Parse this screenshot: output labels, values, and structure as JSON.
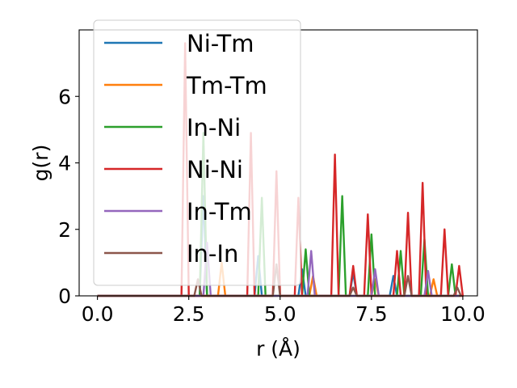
{
  "chart_data": {
    "type": "line",
    "title": "",
    "xlabel": "r (Å)",
    "ylabel": "g(r)",
    "xlim": [
      -0.5,
      10.4
    ],
    "ylim": [
      0,
      8.0
    ],
    "xticks": [
      0.0,
      2.5,
      5.0,
      7.5,
      10.0
    ],
    "xtick_labels": [
      "0.0",
      "2.5",
      "5.0",
      "7.5",
      "10.0"
    ],
    "yticks": [
      0,
      2,
      4,
      6
    ],
    "ytick_labels": [
      "0",
      "2",
      "4",
      "6"
    ],
    "grid": false,
    "legend_position": "upper-left",
    "x_range": [
      0.0,
      9.9
    ],
    "peak_half_width": 0.1,
    "series": [
      {
        "name": "Ni-Tm",
        "color": "#1f77b4",
        "peaks": [
          [
            2.9,
            3.0
          ],
          [
            4.4,
            1.2
          ],
          [
            5.6,
            0.8
          ],
          [
            7.0,
            0.7
          ],
          [
            8.1,
            0.6
          ]
        ]
      },
      {
        "name": "Tm-Tm",
        "color": "#ff7f0e",
        "peaks": [
          [
            3.4,
            1.0
          ],
          [
            5.9,
            0.6
          ],
          [
            7.6,
            0.5
          ],
          [
            9.2,
            0.5
          ]
        ]
      },
      {
        "name": "In-Ni",
        "color": "#2ca02c",
        "peaks": [
          [
            2.9,
            4.9
          ],
          [
            4.5,
            2.95
          ],
          [
            5.7,
            1.4
          ],
          [
            6.7,
            3.0
          ],
          [
            7.5,
            1.85
          ],
          [
            8.3,
            1.35
          ],
          [
            8.95,
            1.7
          ],
          [
            9.7,
            0.95
          ]
        ]
      },
      {
        "name": "Ni-Ni",
        "color": "#d62728",
        "peaks": [
          [
            2.4,
            7.6
          ],
          [
            4.2,
            4.9
          ],
          [
            4.9,
            3.75
          ],
          [
            5.5,
            2.95
          ],
          [
            6.5,
            4.25
          ],
          [
            7.0,
            0.9
          ],
          [
            7.4,
            2.45
          ],
          [
            8.2,
            1.35
          ],
          [
            8.5,
            2.5
          ],
          [
            8.9,
            3.4
          ],
          [
            9.5,
            2.0
          ],
          [
            9.9,
            0.9
          ]
        ]
      },
      {
        "name": "In-Tm",
        "color": "#9467bd",
        "peaks": [
          [
            3.0,
            1.6
          ],
          [
            5.85,
            1.35
          ],
          [
            7.6,
            0.8
          ],
          [
            9.05,
            0.75
          ]
        ]
      },
      {
        "name": "In-In",
        "color": "#8c564b",
        "peaks": [
          [
            2.75,
            0.5
          ],
          [
            4.9,
            0.95
          ],
          [
            7.0,
            0.25
          ],
          [
            8.5,
            0.6
          ],
          [
            9.85,
            0.25
          ]
        ]
      }
    ]
  }
}
